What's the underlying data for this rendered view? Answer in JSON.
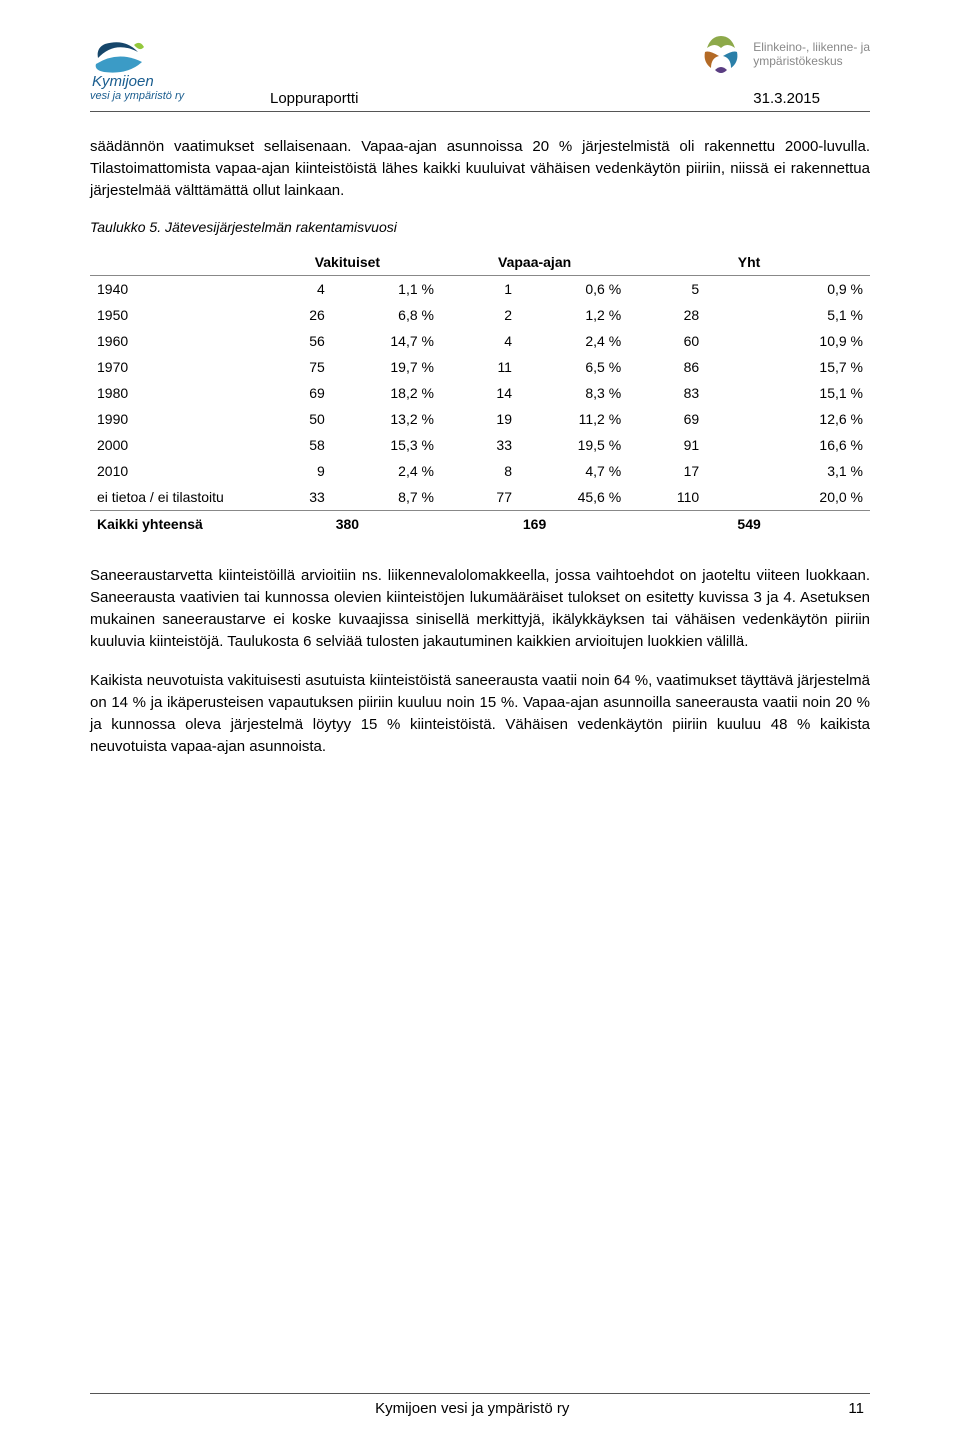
{
  "header": {
    "title": "Loppuraportti",
    "date": "31.3.2015",
    "left_logo": {
      "name": "Kymijoen",
      "sub": "vesi ja ympäristö ry"
    },
    "right_logo": {
      "line1": "Elinkeino-, liikenne- ja",
      "line2": "ympäristökeskus"
    }
  },
  "paragraphs": {
    "p1": "säädännön vaatimukset sellaisenaan. Vapaa-ajan asunnoissa 20 % järjestelmistä oli rakennettu 2000-luvulla. Tilastoimattomista vapaa-ajan kiinteistöistä lähes kaikki kuuluivat vähäisen vedenkäytön piiriin, niissä ei rakennettua järjestelmää välttämättä ollut lainkaan.",
    "caption": "Taulukko 5. Jätevesijärjestelmän rakentamisvuosi",
    "p2": "Saneeraustarvetta kiinteistöillä arvioitiin ns. liikennevalolomakkeella, jossa vaihtoehdot on jaoteltu viiteen luokkaan. Saneerausta vaativien tai kunnossa olevien kiinteistöjen lukumääräiset tulokset on esitetty kuvissa 3 ja 4. Asetuksen mukainen saneeraustarve ei koske kuvaajissa sinisellä merkittyjä, ikälykkäyksen tai vähäisen vedenkäytön piiriin kuuluvia kiinteistöjä. Taulukosta 6 selviää tulosten jakautuminen kaikkien arvioitujen luokkien välillä.",
    "p3": "Kaikista neuvotuista vakituisesti asutuista kiinteistöistä saneerausta vaatii noin 64 %, vaatimukset täyttävä järjestelmä on 14 % ja ikäperusteisen vapautuksen piiriin kuuluu noin 15 %. Vapaa-ajan asunnoilla saneerausta vaatii noin 20 % ja kunnossa oleva järjestelmä löytyy 15 % kiinteistöistä. Vähäisen vedenkäytön piiriin kuuluu 48 % kaikista neuvotuista vapaa-ajan asunnoista."
  },
  "table": {
    "group_headers": [
      "Vakituiset",
      "Vapaa-ajan",
      "Yht"
    ],
    "row_labels": [
      "1940",
      "1950",
      "1960",
      "1970",
      "1980",
      "1990",
      "2000",
      "2010",
      "ei tietoa / ei tilastoitu"
    ],
    "rows": [
      {
        "n1": "4",
        "p1": "1,1 %",
        "n2": "1",
        "p2": "0,6 %",
        "n3": "5",
        "p3": "0,9 %"
      },
      {
        "n1": "26",
        "p1": "6,8 %",
        "n2": "2",
        "p2": "1,2 %",
        "n3": "28",
        "p3": "5,1 %"
      },
      {
        "n1": "56",
        "p1": "14,7 %",
        "n2": "4",
        "p2": "2,4 %",
        "n3": "60",
        "p3": "10,9 %"
      },
      {
        "n1": "75",
        "p1": "19,7 %",
        "n2": "11",
        "p2": "6,5 %",
        "n3": "86",
        "p3": "15,7 %"
      },
      {
        "n1": "69",
        "p1": "18,2 %",
        "n2": "14",
        "p2": "8,3 %",
        "n3": "83",
        "p3": "15,1 %"
      },
      {
        "n1": "50",
        "p1": "13,2 %",
        "n2": "19",
        "p2": "11,2 %",
        "n3": "69",
        "p3": "12,6 %"
      },
      {
        "n1": "58",
        "p1": "15,3 %",
        "n2": "33",
        "p2": "19,5 %",
        "n3": "91",
        "p3": "16,6 %"
      },
      {
        "n1": "9",
        "p1": "2,4 %",
        "n2": "8",
        "p2": "4,7 %",
        "n3": "17",
        "p3": "3,1 %"
      },
      {
        "n1": "33",
        "p1": "8,7 %",
        "n2": "77",
        "p2": "45,6 %",
        "n3": "110",
        "p3": "20,0 %"
      }
    ],
    "total_label": "Kaikki yhteensä",
    "totals": {
      "n1": "380",
      "n2": "169",
      "n3": "549"
    },
    "col_widths": [
      "21%",
      "10%",
      "14%",
      "10%",
      "14%",
      "10%",
      "21%"
    ]
  },
  "footer": {
    "org": "Kymijoen vesi ja ympäristö ry",
    "page": "11"
  }
}
